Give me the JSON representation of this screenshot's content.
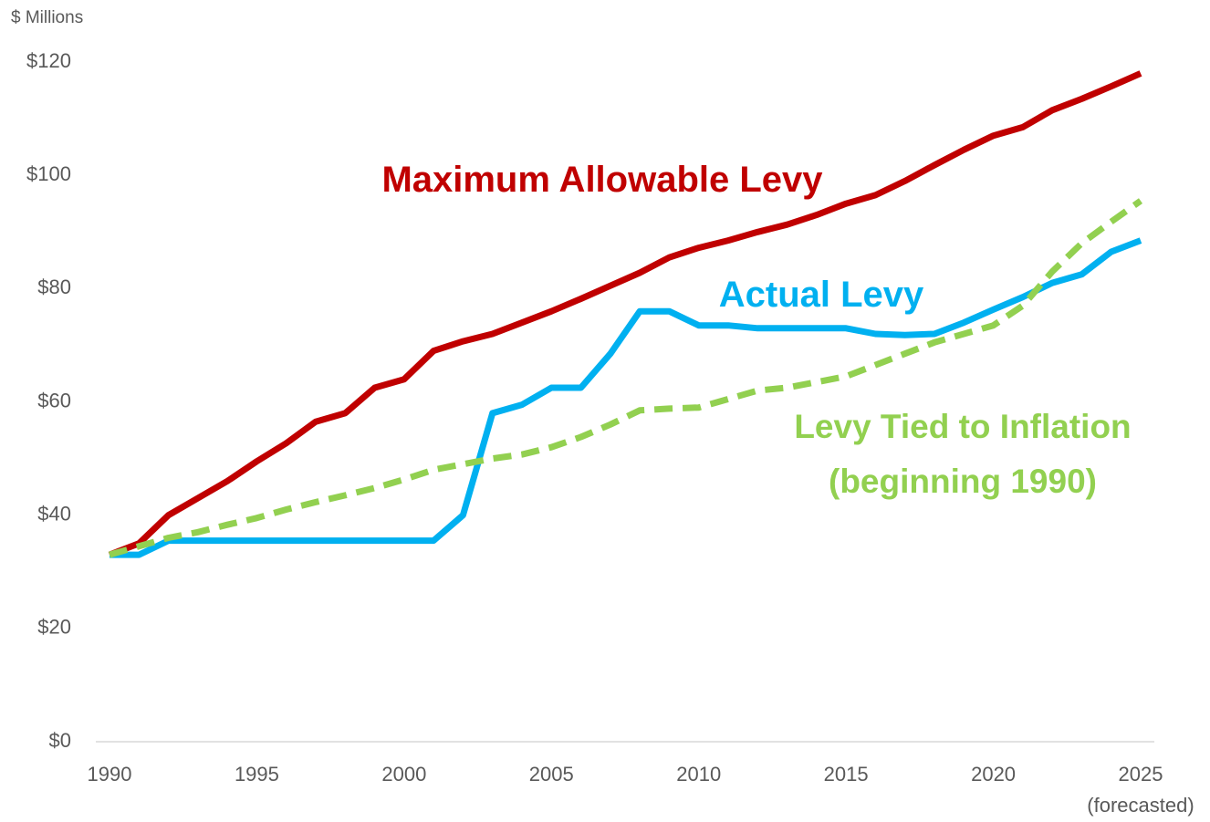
{
  "chart_data": {
    "type": "line",
    "y_label": "$ Millions",
    "annotation": "(forecasted)",
    "x": [
      1990,
      1991,
      1992,
      1993,
      1994,
      1995,
      1996,
      1997,
      1998,
      1999,
      2000,
      2001,
      2002,
      2003,
      2004,
      2005,
      2006,
      2007,
      2008,
      2009,
      2010,
      2011,
      2012,
      2013,
      2014,
      2015,
      2016,
      2017,
      2018,
      2019,
      2020,
      2021,
      2022,
      2023,
      2024,
      2025
    ],
    "xlim": [
      1990,
      2025
    ],
    "xticks": [
      1990,
      1995,
      2000,
      2005,
      2010,
      2015,
      2020,
      2025
    ],
    "ylim": [
      0,
      120
    ],
    "yticks": [
      {
        "value": 0,
        "label": "$0"
      },
      {
        "value": 20,
        "label": "$20"
      },
      {
        "value": 40,
        "label": "$40"
      },
      {
        "value": 60,
        "label": "$60"
      },
      {
        "value": 80,
        "label": "$80"
      },
      {
        "value": 100,
        "label": "$100"
      },
      {
        "value": 120,
        "label": "$120"
      }
    ],
    "grid": false,
    "series": [
      {
        "name": "Maximum Allowable Levy",
        "color": "#c00000",
        "dashed": false,
        "values": [
          33,
          35,
          40,
          43,
          46,
          49.5,
          52.7,
          56.5,
          58,
          62.5,
          64,
          69,
          70.7,
          72,
          74,
          76,
          78.2,
          80.5,
          82.8,
          85.5,
          87.2,
          88.5,
          90,
          91.3,
          93,
          95,
          96.5,
          99,
          101.8,
          104.5,
          107,
          108.5,
          111.5,
          113.5,
          115.7,
          118
        ]
      },
      {
        "name": "Actual Levy",
        "color": "#00b0f0",
        "dashed": false,
        "values": [
          33,
          33,
          35.5,
          35.5,
          35.5,
          35.5,
          35.5,
          35.5,
          35.5,
          35.5,
          35.5,
          35.5,
          40,
          58,
          59.5,
          62.5,
          62.5,
          68.5,
          76,
          76,
          73.5,
          73.5,
          73,
          73,
          73,
          73,
          72,
          71.8,
          72,
          74,
          76.3,
          78.5,
          81,
          82.5,
          86.5,
          88.5
        ]
      },
      {
        "name": "Levy Tied to Inflation (beginning 1990)",
        "color": "#92d050",
        "dashed": true,
        "values": [
          33,
          34.5,
          36,
          37,
          38.3,
          39.5,
          41,
          42.3,
          43.5,
          44.8,
          46.3,
          48,
          49,
          50,
          50.7,
          52,
          53.8,
          56,
          58.5,
          58.8,
          59,
          60.5,
          62,
          62.5,
          63.5,
          64.5,
          66.5,
          68.5,
          70.5,
          72,
          73.5,
          77,
          83,
          88,
          91.8,
          95.5
        ]
      }
    ]
  }
}
